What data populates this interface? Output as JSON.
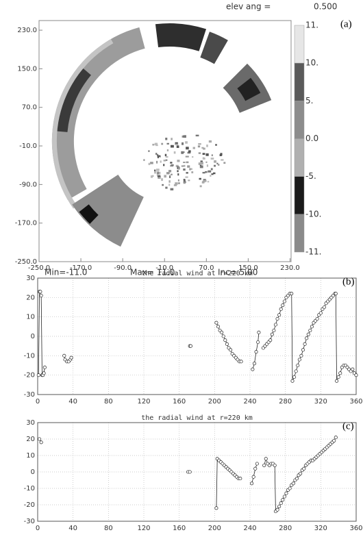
{
  "chart_data": [
    {
      "type": "image",
      "panel_label": "(a)",
      "annotations": [
        "elev ang =",
        "0.500"
      ],
      "footer": [
        "Min=-11.0",
        "Max= 11.0",
        "Inc= 5.00"
      ],
      "xlim": [
        -250,
        232
      ],
      "ylim": [
        -250,
        250
      ],
      "xticks": [
        {
          "value": -250,
          "label": "-250.0"
        },
        {
          "value": -170,
          "label": "-170.0"
        },
        {
          "value": -90,
          "label": "-90.0"
        },
        {
          "value": -10,
          "label": "-10.0"
        },
        {
          "value": 70,
          "label": "70.0"
        },
        {
          "value": 150,
          "label": "150.0"
        },
        {
          "value": 230,
          "label": "230.0"
        }
      ],
      "yticks": [
        {
          "value": -250,
          "label": "-250.0"
        },
        {
          "value": -170,
          "label": "-170.0"
        },
        {
          "value": -90,
          "label": "-90.0"
        },
        {
          "value": -10,
          "label": "-10.0"
        },
        {
          "value": 70,
          "label": "70.0"
        },
        {
          "value": 150,
          "label": "150.0"
        },
        {
          "value": 230,
          "label": "230.0"
        }
      ],
      "colorbar": {
        "ticks": [
          {
            "value": 11,
            "label": "11."
          },
          {
            "value": 10,
            "label": "10."
          },
          {
            "value": 5,
            "label": "5."
          },
          {
            "value": 0,
            "label": "0.0"
          },
          {
            "value": -5,
            "label": "-5."
          },
          {
            "value": -10,
            "label": "-10."
          },
          {
            "value": -11,
            "label": "-11."
          }
        ],
        "colors": [
          "#e6e6e6",
          "#5a5a5a",
          "#8c8c8c",
          "#b0b0b0",
          "#1a1a1a",
          "#8a8a8a"
        ]
      }
    },
    {
      "type": "line",
      "markers": true,
      "grid": true,
      "color": "#222",
      "panel_label": "(b)",
      "title": "the radial wind at r=220 km",
      "xlim": [
        0,
        360
      ],
      "ylim": [
        -30,
        30
      ],
      "xticks": [
        0,
        40,
        80,
        120,
        160,
        200,
        240,
        280,
        320,
        360
      ],
      "yticks": [
        -30,
        -20,
        -10,
        0,
        10,
        20,
        30
      ],
      "x": [
        1,
        2,
        3,
        4,
        5,
        6,
        7,
        8,
        null,
        30,
        31,
        33,
        35,
        37,
        38,
        null,
        172,
        173,
        null,
        202,
        204,
        206,
        208,
        210,
        212,
        214,
        216,
        218,
        220,
        222,
        224,
        226,
        228,
        230,
        null,
        243,
        245,
        247,
        249,
        250,
        null,
        255,
        257,
        259,
        261,
        263,
        265,
        267,
        269,
        271,
        273,
        275,
        277,
        279,
        281,
        283,
        285,
        287,
        288,
        290,
        292,
        294,
        296,
        298,
        300,
        302,
        304,
        306,
        308,
        310,
        312,
        314,
        316,
        318,
        320,
        322,
        324,
        326,
        328,
        330,
        332,
        334,
        336,
        337,
        338,
        340,
        342,
        344,
        346,
        348,
        350,
        352,
        354,
        356,
        358,
        360
      ],
      "values": [
        -20,
        23,
        23,
        21,
        -20,
        -20,
        -19,
        -16,
        null,
        -10,
        -12,
        -13,
        -13,
        -12,
        -11,
        null,
        -5,
        -5,
        null,
        7,
        5,
        3,
        2,
        0,
        -2,
        -4,
        -6,
        -7,
        -9,
        -10,
        -11,
        -12,
        -13,
        -13,
        null,
        -17,
        -14,
        -8,
        -3,
        2,
        null,
        -6,
        -5,
        -4,
        -3,
        -2,
        1,
        3,
        6,
        9,
        11,
        14,
        16,
        18,
        20,
        21,
        22,
        22,
        -23,
        -21,
        -18,
        -15,
        -12,
        -10,
        -7,
        -4,
        -1,
        1,
        3,
        5,
        7,
        8,
        9,
        11,
        12,
        14,
        15,
        17,
        18,
        19,
        20,
        21,
        22,
        22,
        -23,
        -21,
        -19,
        -16,
        -15,
        -15,
        -16,
        -17,
        -18,
        -17,
        -19,
        -20
      ]
    },
    {
      "type": "line",
      "markers": true,
      "grid": true,
      "color": "#222",
      "panel_label": "(c)",
      "title": "the radial wind at r=220 km",
      "xlim": [
        0,
        360
      ],
      "ylim": [
        -30,
        30
      ],
      "xticks": [
        0,
        40,
        80,
        120,
        160,
        200,
        240,
        280,
        320,
        360
      ],
      "yticks": [
        -30,
        -20,
        -10,
        0,
        10,
        20,
        30
      ],
      "x": [
        2,
        4,
        null,
        170,
        172,
        null,
        202,
        203,
        205,
        207,
        209,
        211,
        213,
        215,
        217,
        219,
        221,
        223,
        225,
        227,
        229,
        null,
        242,
        244,
        246,
        248,
        null,
        256,
        258,
        260,
        262,
        264,
        266,
        268,
        269,
        271,
        273,
        275,
        277,
        279,
        281,
        283,
        285,
        287,
        289,
        291,
        293,
        295,
        297,
        299,
        301,
        303,
        305,
        307,
        309,
        311,
        313,
        315,
        317,
        319,
        321,
        323,
        325,
        327,
        329,
        331,
        333,
        335,
        337
      ],
      "values": [
        20,
        18,
        null,
        0,
        0,
        null,
        -22,
        8,
        7,
        6,
        5,
        4,
        3,
        2,
        1,
        0,
        -1,
        -2,
        -3,
        -4,
        -4,
        null,
        -7,
        -3,
        2,
        5,
        null,
        4,
        8,
        5,
        4,
        5,
        5,
        4,
        -24,
        -23,
        -21,
        -19,
        -17,
        -15,
        -13,
        -11,
        -10,
        -8,
        -7,
        -5,
        -4,
        -2,
        -1,
        1,
        2,
        4,
        5,
        6,
        7,
        7,
        8,
        9,
        10,
        11,
        12,
        13,
        14,
        15,
        16,
        17,
        18,
        19,
        21
      ]
    }
  ]
}
